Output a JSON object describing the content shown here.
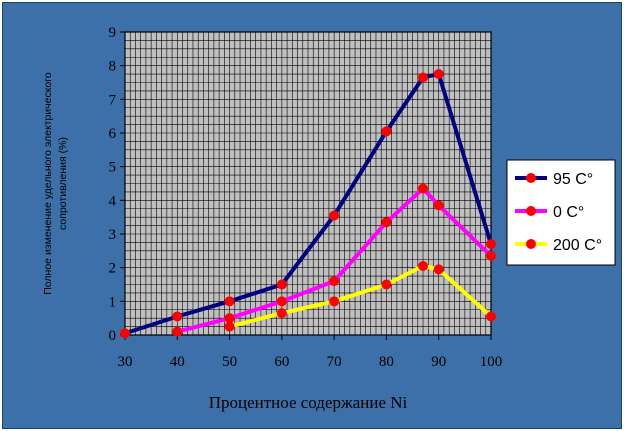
{
  "chart_data": {
    "type": "line",
    "title": "",
    "xlabel": "Процентное содержание Ni",
    "ylabel_lines": [
      "Полное изменение удельного электрического",
      "сопротивления (%)"
    ],
    "xlim": [
      30,
      100
    ],
    "ylim": [
      0,
      9
    ],
    "x_ticks": [
      "30",
      "40",
      "50",
      "60",
      "70",
      "80",
      "90",
      "100"
    ],
    "y_ticks": [
      "0",
      "1",
      "2",
      "3",
      "4",
      "5",
      "6",
      "7",
      "8",
      "9"
    ],
    "grid": true,
    "legend_position": "right",
    "series": [
      {
        "name": "95 С°",
        "color": "#000080",
        "x": [
          30,
          40,
          50,
          60,
          70,
          80,
          87,
          90,
          100
        ],
        "y": [
          0.05,
          0.55,
          1.0,
          1.5,
          3.55,
          6.05,
          7.65,
          7.75,
          2.7
        ]
      },
      {
        "name": "0 С°",
        "color": "#ff00ff",
        "x": [
          40,
          50,
          60,
          70,
          80,
          87,
          90,
          100
        ],
        "y": [
          0.1,
          0.5,
          1.0,
          1.6,
          3.35,
          4.35,
          3.85,
          2.35
        ]
      },
      {
        "name": "200 С°",
        "color": "#ffff00",
        "x": [
          50,
          60,
          70,
          80,
          87,
          90,
          100
        ],
        "y": [
          0.25,
          0.65,
          1.0,
          1.5,
          2.05,
          1.95,
          0.55
        ]
      }
    ],
    "marker_color": "#ff0000"
  }
}
